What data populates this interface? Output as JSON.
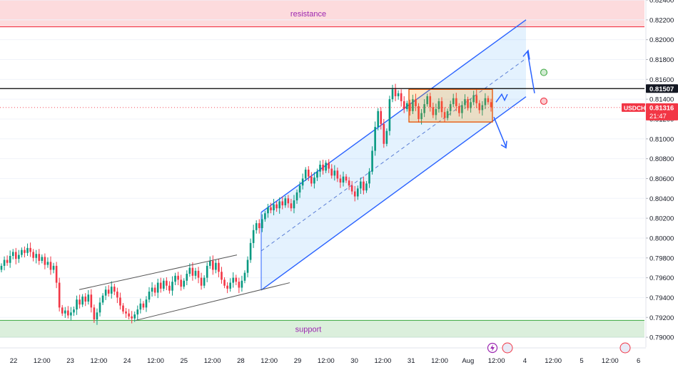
{
  "chart_data": {
    "type": "candlestick",
    "symbol": "USDCHF",
    "current_price": "0.81316",
    "countdown": "21:47",
    "marked_level": "0.81507",
    "ylim": [
      0.789,
      0.824
    ],
    "y_ticks": [
      "0.82400",
      "0.82200",
      "0.82000",
      "0.81800",
      "0.81600",
      "0.81400",
      "0.81200",
      "0.81000",
      "0.80800",
      "0.80600",
      "0.80400",
      "0.80200",
      "0.80000",
      "0.79800",
      "0.79600",
      "0.79400",
      "0.79200",
      "0.79000"
    ],
    "x_ticks": [
      "22",
      "12:00",
      "23",
      "12:00",
      "24",
      "12:00",
      "25",
      "12:00",
      "28",
      "12:00",
      "29",
      "12:00",
      "30",
      "12:00",
      "31",
      "12:00",
      "Aug",
      "12:00",
      "4",
      "12:00",
      "5",
      "12:00",
      "6"
    ],
    "zones": [
      {
        "label": "resistance",
        "from": 0.8213,
        "to": 0.824,
        "color": "#f23645"
      },
      {
        "label": "support",
        "from": 0.79,
        "to": 0.7917,
        "color": "#4caf50"
      }
    ],
    "candles_close": [
      0.7972,
      0.7978,
      0.7975,
      0.7982,
      0.7986,
      0.7979,
      0.7983,
      0.7988,
      0.7985,
      0.799,
      0.7986,
      0.798,
      0.7984,
      0.7977,
      0.7981,
      0.7973,
      0.7976,
      0.7968,
      0.7972,
      0.7955,
      0.793,
      0.7924,
      0.7927,
      0.7922,
      0.7925,
      0.7928,
      0.7938,
      0.7933,
      0.7941,
      0.7936,
      0.7943,
      0.793,
      0.7918,
      0.7925,
      0.7935,
      0.7942,
      0.7948,
      0.7944,
      0.7951,
      0.7946,
      0.794,
      0.7932,
      0.7926,
      0.7924,
      0.7921,
      0.7919,
      0.7923,
      0.7928,
      0.7934,
      0.793,
      0.7938,
      0.7946,
      0.795,
      0.7945,
      0.7955,
      0.7949,
      0.7957,
      0.7952,
      0.7947,
      0.7956,
      0.7962,
      0.7958,
      0.7951,
      0.7957,
      0.7964,
      0.797,
      0.7962,
      0.7967,
      0.796,
      0.7952,
      0.796,
      0.7972,
      0.7977,
      0.7968,
      0.7975,
      0.7966,
      0.7958,
      0.7952,
      0.7949,
      0.7955,
      0.796,
      0.7956,
      0.795,
      0.7957,
      0.7965,
      0.7978,
      0.7995,
      0.8008,
      0.8015,
      0.801,
      0.8019,
      0.8025,
      0.8031,
      0.8028,
      0.8034,
      0.803,
      0.8037,
      0.8033,
      0.804,
      0.8035,
      0.803,
      0.8038,
      0.8046,
      0.8053,
      0.806,
      0.8069,
      0.8062,
      0.8055,
      0.8061,
      0.8067,
      0.8074,
      0.8068,
      0.8076,
      0.807,
      0.8063,
      0.8068,
      0.806,
      0.8056,
      0.8062,
      0.8058,
      0.8053,
      0.8047,
      0.8042,
      0.805,
      0.8057,
      0.8048,
      0.8055,
      0.8067,
      0.8088,
      0.8112,
      0.8128,
      0.8115,
      0.8095,
      0.8108,
      0.814,
      0.815,
      0.8143,
      0.8146,
      0.8138,
      0.813,
      0.8136,
      0.8128,
      0.814,
      0.8133,
      0.812,
      0.8126,
      0.8135,
      0.8143,
      0.8132,
      0.8124,
      0.813,
      0.8138,
      0.8127,
      0.8121,
      0.8128,
      0.8135,
      0.8141,
      0.8133,
      0.8126,
      0.8134,
      0.814,
      0.8131,
      0.8137,
      0.8144,
      0.8136,
      0.8129,
      0.8134,
      0.8141,
      0.8137,
      0.8132
    ]
  }
}
